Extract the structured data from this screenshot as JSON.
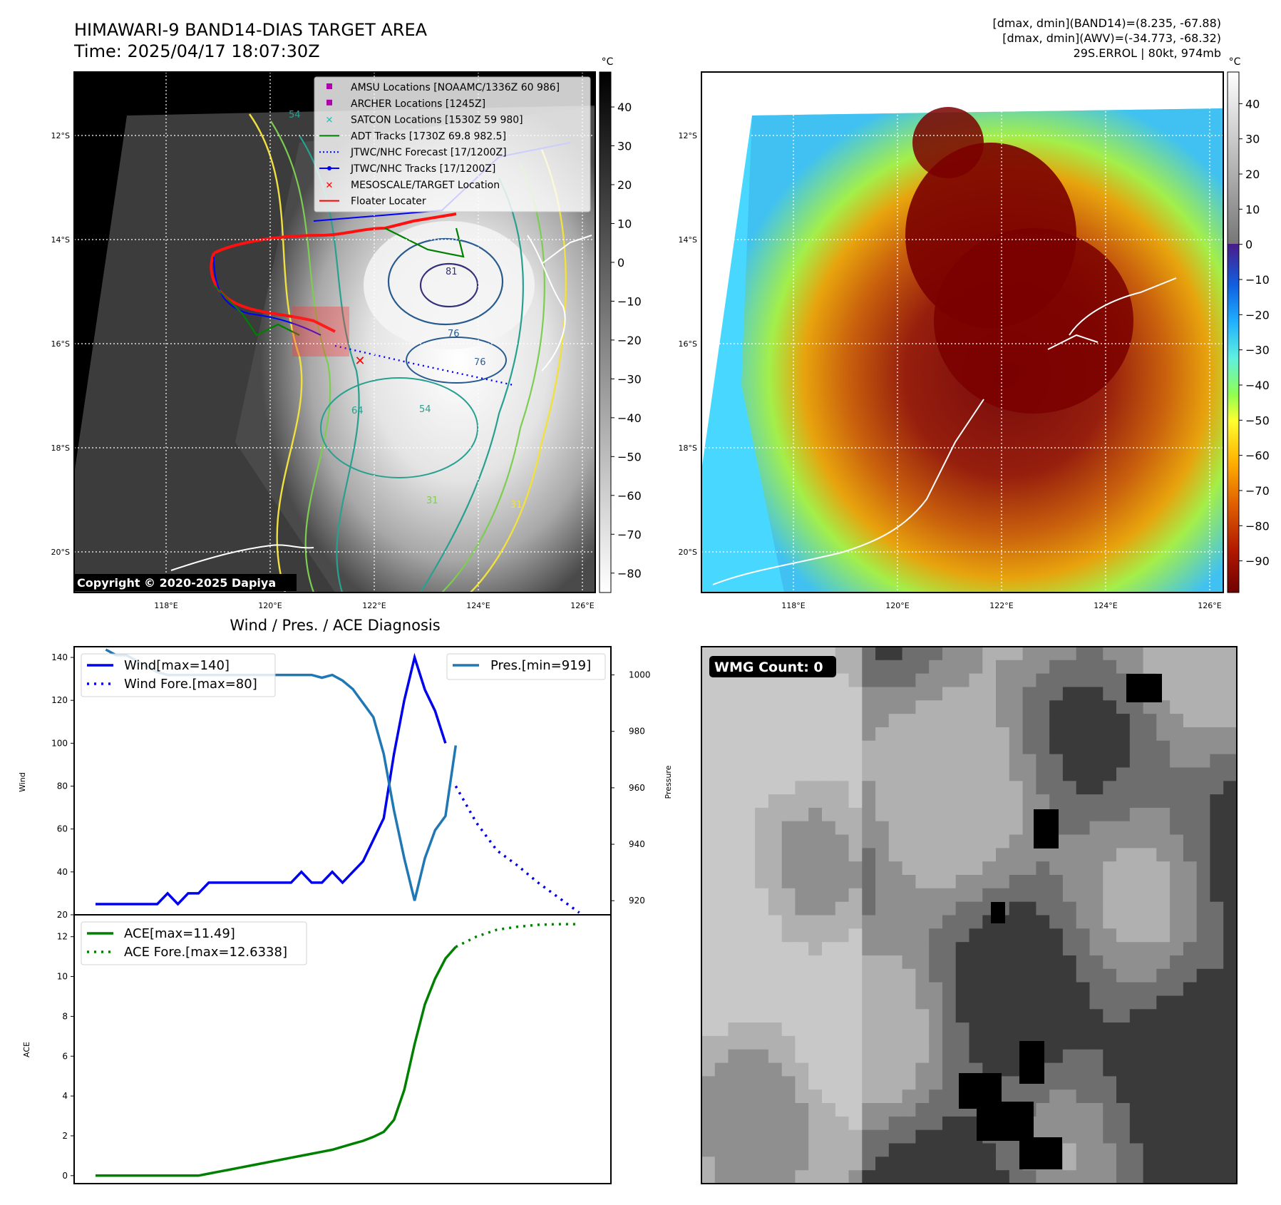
{
  "header": {
    "title": "HIMAWARI-9 BAND14-DIAS TARGET AREA",
    "time": "Time: 2025/04/17 18:07:30Z",
    "stats": [
      "[dmax, dmin](BAND14)=(8.235, -67.88)",
      "[dmax, dmin](AWV)=(-34.773, -68.32)",
      "29S.ERROL | 80kt, 974mb"
    ]
  },
  "maps": {
    "lat_labels": [
      "12°S",
      "14°S",
      "16°S",
      "18°S",
      "20°S"
    ],
    "lon_labels": [
      "118°E",
      "120°E",
      "122°E",
      "124°E",
      "126°E"
    ],
    "unit": "°C",
    "left_colorbar_ticks": [
      "40",
      "30",
      "20",
      "10",
      "0",
      "−10",
      "−20",
      "−30",
      "−40",
      "−50",
      "−60",
      "−70",
      "−80"
    ],
    "right_colorbar_ticks": [
      "40",
      "30",
      "20",
      "10",
      "0",
      "−10",
      "−20",
      "−30",
      "−40",
      "−50",
      "−60",
      "−70",
      "−80",
      "−90"
    ],
    "copyright": "Copyright © 2020-2025 Dapiya",
    "contour_labels": [
      "54",
      "81",
      "76",
      "76",
      "64",
      "54",
      "31",
      "31"
    ],
    "legend": [
      {
        "label": "AMSU Locations [NOAAMC/1336Z 60 986]",
        "color": "#b000b0"
      },
      {
        "label": "ARCHER Locations [1245Z]",
        "color": "#b000b0"
      },
      {
        "label": "SATCON Locations [1530Z 59 980]",
        "color": "#20c0b0"
      },
      {
        "label": "ADT Tracks [1730Z 69.8 982.5]",
        "color": "#008000"
      },
      {
        "label": "JTWC/NHC Forecast [17/1200Z]",
        "color": "#0000ff"
      },
      {
        "label": "JTWC/NHC Tracks [17/1200Z]",
        "color": "#0000ff"
      },
      {
        "label": "MESOSCALE/TARGET Location",
        "color": "#ff0000"
      },
      {
        "label": "Floater Locater",
        "color": "#ff0000"
      }
    ]
  },
  "wmg": {
    "label": "WMG Count: 0"
  },
  "chart_data": [
    {
      "type": "line",
      "title": "Wind / Pres. / ACE Diagnosis",
      "ylabel": "Wind",
      "y2label": "Pressure",
      "ylim": [
        20,
        145
      ],
      "y2lim": [
        915,
        1010
      ],
      "yticks": [
        20,
        40,
        60,
        80,
        100,
        120,
        140
      ],
      "y2ticks": [
        920,
        940,
        960,
        980,
        1000
      ],
      "legend_left": [
        "Wind[max=140]",
        "Wind Fore.[max=80]"
      ],
      "legend_right": [
        "Pres.[min=919]"
      ],
      "colors": {
        "wind": "#0000ee",
        "pres": "#1f77b4"
      },
      "series": [
        {
          "name": "Wind[max=140]",
          "axis": "left",
          "x": [
            0,
            1,
            2,
            3,
            4,
            5,
            6,
            7,
            8,
            9,
            10,
            11,
            12,
            13,
            14,
            15,
            16,
            17,
            18,
            19,
            20,
            21,
            22,
            23,
            24,
            25,
            26,
            27,
            28,
            29,
            30,
            31,
            32,
            33,
            34
          ],
          "values": [
            25,
            25,
            25,
            25,
            25,
            25,
            25,
            30,
            25,
            30,
            30,
            35,
            35,
            35,
            35,
            35,
            35,
            35,
            35,
            35,
            40,
            35,
            35,
            40,
            35,
            40,
            45,
            55,
            65,
            95,
            120,
            140,
            125,
            115,
            100
          ]
        },
        {
          "name": "Wind Fore.[max=80]",
          "axis": "left",
          "style": "dotted",
          "x": [
            35,
            37,
            39,
            41,
            43,
            45,
            47
          ],
          "values": [
            80,
            63,
            50,
            43,
            35,
            28,
            21
          ]
        },
        {
          "name": "Pres.[min=919]",
          "axis": "right",
          "x": [
            1,
            2,
            3,
            4,
            5,
            6,
            7,
            8,
            9,
            10,
            11,
            12,
            13,
            14,
            15,
            16,
            17,
            18,
            19,
            20,
            21,
            22,
            23,
            24,
            25,
            26,
            27,
            28,
            29,
            30,
            31,
            32,
            33,
            34,
            35
          ],
          "values": [
            1009,
            1007,
            1007,
            1005,
            1003,
            1001,
            1000,
            1000,
            1000,
            1000,
            1000,
            1000,
            1000,
            1000,
            1000,
            1000,
            1000,
            1000,
            1000,
            1000,
            1000,
            999,
            1000,
            998,
            995,
            990,
            985,
            972,
            952,
            935,
            920,
            935,
            945,
            950,
            975
          ]
        }
      ]
    },
    {
      "type": "line",
      "ylabel": "ACE",
      "ylim": [
        -0.4,
        13.1
      ],
      "yticks": [
        0,
        2,
        4,
        6,
        8,
        10,
        12
      ],
      "legend": [
        "ACE[max=11.49]",
        "ACE Fore.[max=12.6338]"
      ],
      "colors": {
        "ace": "#008000"
      },
      "series": [
        {
          "name": "ACE[max=11.49]",
          "x": [
            0,
            1,
            2,
            3,
            4,
            5,
            6,
            7,
            8,
            9,
            10,
            11,
            12,
            13,
            14,
            15,
            16,
            17,
            18,
            19,
            20,
            21,
            22,
            23,
            24,
            25,
            26,
            27,
            28,
            29,
            30,
            31,
            32,
            33,
            34,
            35
          ],
          "values": [
            0,
            0,
            0,
            0,
            0,
            0,
            0,
            0,
            0,
            0,
            0,
            0.1,
            0.2,
            0.3,
            0.4,
            0.5,
            0.6,
            0.7,
            0.8,
            0.9,
            1.0,
            1.1,
            1.2,
            1.3,
            1.45,
            1.6,
            1.75,
            1.95,
            2.2,
            2.8,
            4.3,
            6.6,
            8.6,
            9.9,
            10.9,
            11.49
          ]
        },
        {
          "name": "ACE Fore.[max=12.6338]",
          "style": "dotted",
          "x": [
            35,
            37,
            39,
            41,
            43,
            45,
            47
          ],
          "values": [
            11.49,
            12.0,
            12.35,
            12.5,
            12.6,
            12.63,
            12.63
          ]
        }
      ]
    }
  ]
}
